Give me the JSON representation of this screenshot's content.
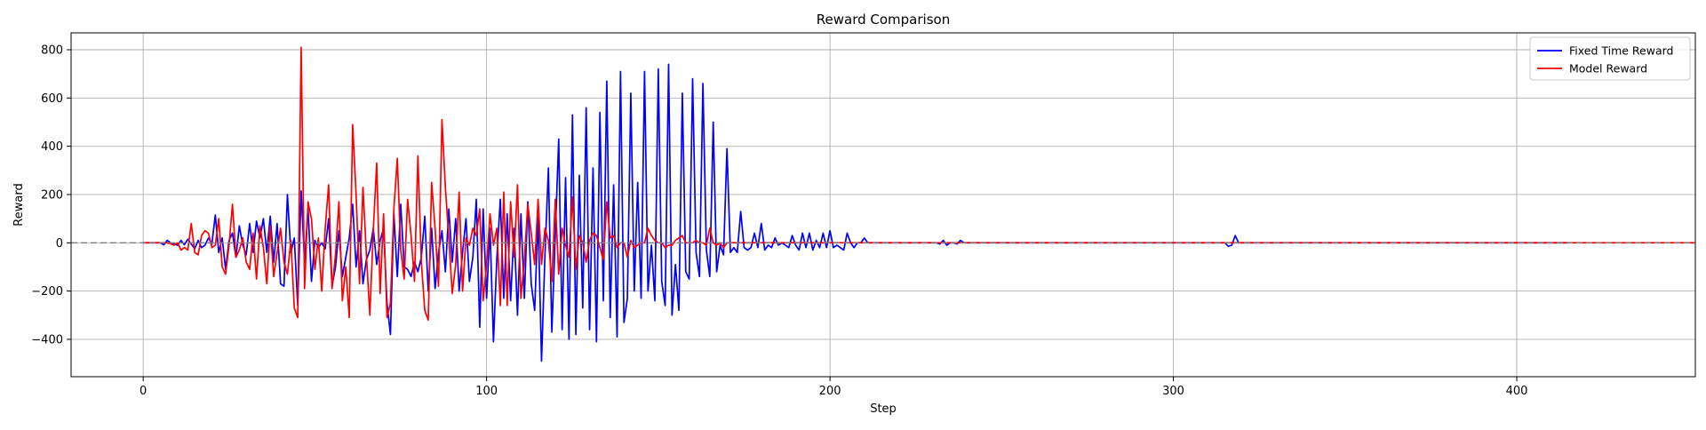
{
  "chart_data": {
    "type": "line",
    "title": "Reward Comparison",
    "xlabel": "Step",
    "ylabel": "Reward",
    "xlim": [
      -21,
      452
    ],
    "ylim": [
      -555,
      870
    ],
    "x_ticks": [
      0,
      100,
      200,
      300,
      400
    ],
    "y_ticks": [
      -400,
      -200,
      0,
      200,
      400,
      600,
      800
    ],
    "x_tick_labels": [
      "0",
      "100",
      "200",
      "300",
      "400"
    ],
    "y_tick_labels": [
      "−400",
      "−200",
      "0",
      "200",
      "400",
      "600",
      "800"
    ],
    "grid": true,
    "legend_position": "top-right",
    "reference_line": {
      "y": 0,
      "style": "dashed",
      "color": "#808080"
    },
    "series": [
      {
        "name": "Fixed Time Reward",
        "color": "#0000ff",
        "x_start": 0,
        "values": [
          0,
          0,
          0,
          0,
          0,
          0,
          -8,
          10,
          0,
          -5,
          -10,
          10,
          -8,
          15,
          -5,
          -25,
          10,
          -20,
          -10,
          20,
          -5,
          115,
          -40,
          20,
          -110,
          10,
          40,
          -60,
          70,
          -10,
          -50,
          80,
          -40,
          90,
          20,
          100,
          -40,
          110,
          -80,
          80,
          -170,
          -180,
          200,
          -40,
          20,
          -260,
          215,
          -80,
          145,
          -160,
          10,
          -20,
          0,
          -25,
          100,
          -180,
          -100,
          50,
          -140,
          -60,
          20,
          160,
          -100,
          50,
          -170,
          -70,
          -30,
          60,
          -90,
          10,
          60,
          -250,
          -380,
          120,
          -140,
          160,
          -100,
          -110,
          -140,
          -80,
          -120,
          -60,
          110,
          -200,
          60,
          -190,
          -40,
          50,
          -120,
          140,
          -80,
          100,
          -200,
          -40,
          100,
          -160,
          -60,
          180,
          -350,
          140,
          -230,
          60,
          -410,
          -60,
          180,
          -230,
          120,
          -240,
          60,
          -300,
          120,
          -230,
          170,
          -170,
          -280,
          110,
          -490,
          -50,
          310,
          -370,
          30,
          430,
          -360,
          270,
          -400,
          530,
          -380,
          280,
          -270,
          560,
          -360,
          310,
          -410,
          540,
          -240,
          670,
          -310,
          240,
          -390,
          710,
          -330,
          -230,
          620,
          -200,
          250,
          -230,
          710,
          -200,
          -10,
          -240,
          720,
          -160,
          -260,
          740,
          -300,
          -90,
          -280,
          620,
          -120,
          -150,
          680,
          -40,
          -140,
          660,
          -30,
          -140,
          500,
          -120,
          -10,
          -50,
          390,
          -40,
          -20,
          -40,
          130,
          -20,
          -30,
          -20,
          40,
          -20,
          80,
          -30,
          -10,
          -20,
          20,
          -10,
          0,
          -10,
          -20,
          30,
          -10,
          -30,
          40,
          -20,
          40,
          -30,
          10,
          -20,
          40,
          -20,
          50,
          -20,
          -10,
          -20,
          -30,
          40,
          0,
          -20,
          0,
          0,
          20,
          0,
          0,
          0,
          0,
          0,
          0,
          0,
          0,
          0,
          0,
          0,
          0,
          0,
          0,
          0,
          0,
          0,
          0,
          0,
          0,
          0,
          -5,
          10,
          -10,
          0,
          0,
          -5,
          10,
          0,
          0,
          0,
          0,
          0,
          0,
          0,
          0,
          0,
          0,
          0,
          0,
          0,
          0,
          0,
          0,
          0,
          0,
          0,
          0,
          0,
          0,
          0,
          0,
          0,
          0,
          0,
          0,
          0,
          0,
          0,
          0,
          0,
          0,
          0,
          0,
          0,
          0,
          0,
          0,
          0,
          0,
          0,
          0,
          0,
          0,
          0,
          0,
          0,
          0,
          0,
          0,
          0,
          0,
          0,
          0,
          0,
          0,
          0,
          0,
          0,
          0,
          0,
          0,
          0,
          0,
          0,
          0,
          0,
          0,
          0,
          0,
          0,
          0,
          0,
          0,
          0,
          -15,
          -10,
          30,
          0,
          0,
          0,
          0,
          0,
          0,
          0,
          0,
          0,
          0,
          0,
          0,
          0,
          0,
          0,
          0,
          0,
          0,
          0,
          0,
          0,
          0,
          0,
          0,
          0,
          0,
          0,
          0,
          0,
          0,
          0,
          0,
          0,
          0,
          0,
          0,
          0,
          0,
          0,
          0,
          0,
          0,
          0,
          0,
          0,
          0,
          0,
          0,
          0,
          0,
          0,
          0,
          0,
          0,
          0,
          0,
          0,
          0,
          0,
          0,
          0,
          0,
          0,
          0,
          0,
          0,
          0,
          0,
          0,
          0,
          0,
          0,
          0,
          0,
          0,
          0,
          0,
          0,
          0,
          0,
          0,
          0,
          0,
          0,
          0,
          0,
          0,
          0,
          0,
          0,
          0,
          0,
          0,
          0,
          0,
          0,
          0
        ]
      },
      {
        "name": "Model Reward",
        "color": "#ff0000",
        "x_start": 0,
        "values": [
          0,
          0,
          0,
          0,
          0,
          0,
          0,
          0,
          -5,
          -10,
          0,
          -30,
          -20,
          -30,
          80,
          -40,
          -50,
          30,
          50,
          40,
          -20,
          -10,
          100,
          -100,
          -130,
          -10,
          160,
          -60,
          -30,
          20,
          -80,
          -110,
          40,
          -150,
          70,
          -20,
          -170,
          70,
          -140,
          -40,
          60,
          -80,
          -130,
          10,
          -270,
          -310,
          810,
          -190,
          170,
          100,
          -110,
          20,
          -200,
          60,
          240,
          -190,
          -50,
          170,
          -240,
          -100,
          -310,
          490,
          200,
          -170,
          230,
          -50,
          -300,
          50,
          330,
          -210,
          120,
          -310,
          -250,
          140,
          350,
          -30,
          -150,
          180,
          30,
          -160,
          360,
          -80,
          -280,
          -320,
          250,
          60,
          -180,
          510,
          230,
          20,
          -210,
          -90,
          210,
          -200,
          20,
          -10,
          60,
          30,
          140,
          -240,
          -90,
          120,
          -10,
          60,
          -260,
          210,
          -260,
          170,
          -60,
          240,
          -230,
          -70,
          160,
          40,
          -90,
          180,
          -90,
          60,
          10,
          -160,
          180,
          -130,
          60,
          -10,
          -60,
          190,
          -110,
          30,
          0,
          -80,
          10,
          40,
          30,
          -20,
          -70,
          170,
          20,
          30,
          -20,
          0,
          0,
          -60,
          10,
          -20,
          -10,
          0,
          0,
          60,
          30,
          10,
          0,
          0,
          -20,
          -10,
          -10,
          10,
          20,
          30,
          0,
          0,
          0,
          10,
          0,
          0,
          -10,
          60,
          0,
          -10,
          0,
          -20,
          0,
          0,
          0,
          0,
          0,
          0,
          0,
          0,
          0,
          0,
          0,
          0,
          0,
          0,
          0,
          0,
          0,
          0,
          0,
          0,
          0,
          0,
          0,
          0,
          0,
          0,
          0,
          0,
          0,
          0,
          0,
          0,
          0,
          0,
          0,
          0,
          0,
          0,
          0,
          0,
          0,
          0,
          0,
          0,
          0,
          0,
          0,
          0,
          0,
          0,
          0,
          0,
          0,
          0,
          0,
          0,
          0,
          0,
          0,
          0,
          0,
          0,
          0,
          0,
          0,
          0,
          0,
          0,
          0,
          0,
          0,
          0,
          0,
          0,
          0,
          0,
          0,
          0,
          0,
          0,
          0,
          0,
          0,
          0,
          0,
          0,
          0,
          0,
          0,
          0,
          0,
          0,
          0,
          0,
          0,
          0,
          0,
          0,
          0,
          0,
          0,
          0,
          0,
          0,
          0,
          0,
          0,
          0,
          0,
          0,
          0,
          0,
          0,
          0,
          0,
          0,
          0,
          0,
          0,
          0,
          0,
          0,
          0,
          0,
          0,
          0,
          0,
          0,
          0,
          0,
          0,
          0,
          0,
          0,
          0,
          0,
          0,
          0,
          0,
          0,
          0,
          0,
          0,
          0,
          0,
          0,
          0,
          0,
          0,
          0,
          0,
          0,
          0,
          0,
          0,
          0,
          0,
          0,
          0,
          0,
          0,
          0,
          0,
          0,
          0,
          0,
          0,
          0,
          0,
          0,
          0,
          0,
          0,
          0,
          0,
          0,
          0,
          0,
          0,
          0,
          0,
          0,
          0,
          0,
          0,
          0,
          0,
          0,
          0,
          0,
          0,
          0,
          0,
          0,
          0,
          0,
          0,
          0,
          0,
          0,
          0,
          0,
          0,
          0,
          0,
          0,
          0,
          0,
          0,
          0,
          0,
          0,
          0,
          0,
          0,
          0,
          0,
          0,
          0,
          0,
          0,
          0,
          0,
          0,
          0,
          0,
          0,
          0,
          0,
          0,
          0,
          0,
          0,
          0,
          0,
          0,
          0,
          0,
          0,
          0,
          0,
          0,
          0,
          0,
          0,
          0,
          0,
          0,
          0,
          0,
          0,
          0,
          0,
          0,
          0,
          0,
          0,
          0,
          0,
          0,
          0,
          0,
          0,
          0,
          0,
          0,
          0,
          0,
          0,
          0,
          0,
          0,
          0,
          0,
          0,
          0,
          0,
          0,
          0,
          0,
          0,
          0,
          0,
          0,
          0,
          0,
          0,
          0,
          0,
          0,
          0,
          0,
          0,
          0,
          0,
          0,
          0,
          0,
          0,
          0,
          0,
          0,
          0,
          0,
          0,
          0,
          0,
          0,
          0,
          0,
          0,
          0,
          0,
          0,
          0,
          0,
          0,
          0
        ]
      }
    ]
  }
}
